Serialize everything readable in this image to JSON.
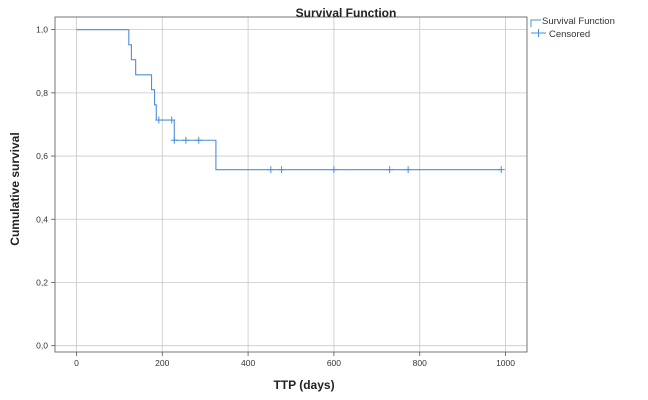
{
  "chart_data": {
    "type": "line",
    "title": "Survival Function",
    "xlabel": "TTP (days)",
    "ylabel": "Cumulative survival",
    "xlim": [
      -50,
      1050
    ],
    "ylim": [
      -0.02,
      1.04
    ],
    "x_ticks": [
      0,
      200,
      400,
      600,
      800,
      1000
    ],
    "x_tick_labels": [
      "0",
      "200",
      "400",
      "600",
      "800",
      "1000"
    ],
    "y_ticks": [
      0.0,
      0.2,
      0.4,
      0.6,
      0.8,
      1.0
    ],
    "y_tick_labels": [
      "0,0",
      "0,2",
      "0,4",
      "0,6",
      "0,8",
      "1,0"
    ],
    "grid": true,
    "legend_position": "top-right",
    "series": [
      {
        "name": "Survival Function",
        "style": "step",
        "color": "#4a90d9",
        "x": [
          0,
          122,
          128,
          138,
          175,
          182,
          186,
          190,
          228,
          325,
          990
        ],
        "y": [
          1.0,
          0.952,
          0.905,
          0.857,
          0.81,
          0.762,
          0.714,
          0.714,
          0.65,
          0.557,
          0.557
        ]
      },
      {
        "name": "Censored",
        "style": "marker-plus",
        "color": "#4a90d9",
        "x": [
          192,
          222,
          228,
          255,
          285,
          453,
          478,
          600,
          730,
          773,
          990
        ],
        "y": [
          0.714,
          0.714,
          0.65,
          0.65,
          0.65,
          0.557,
          0.557,
          0.557,
          0.557,
          0.557,
          0.557
        ]
      }
    ]
  }
}
